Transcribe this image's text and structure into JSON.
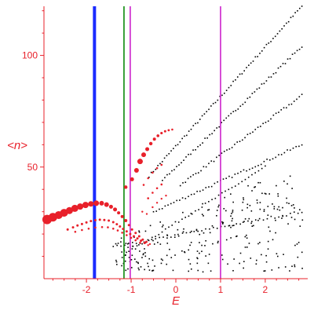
{
  "chart_data": {
    "type": "scatter",
    "xlabel": "E",
    "ylabel": "<n>",
    "xlim": [
      -2.95,
      2.95
    ],
    "ylim": [
      0,
      122
    ],
    "x_ticks": [
      -2,
      -1,
      0,
      1,
      2
    ],
    "x_tick_labels": [
      "-2",
      "-1",
      "0",
      "1",
      "2"
    ],
    "y_ticks": [
      50,
      100
    ],
    "y_tick_labels": [
      "50",
      "100"
    ],
    "grid": false,
    "colors": {
      "axis": "#e8202a",
      "points_black": "#000000",
      "points_red": "#e8202a",
      "line_blue": "#1a2bff",
      "line_green": "#0a8a0a",
      "line_magenta": "#cc22cc"
    },
    "vertical_lines": [
      {
        "x": -1.82,
        "color": "#1a2bff",
        "width": "thick"
      },
      {
        "x": -1.16,
        "color": "#0a8a0a",
        "width": "thin"
      },
      {
        "x": -1.02,
        "color": "#cc22cc",
        "width": "thin"
      },
      {
        "x": 1.0,
        "color": "#cc22cc",
        "width": "thin"
      }
    ],
    "red_series": [
      {
        "x": -2.88,
        "y": 26.5,
        "s": 6
      },
      {
        "x": -2.75,
        "y": 27.5,
        "s": 5.5
      },
      {
        "x": -2.62,
        "y": 28.5,
        "s": 5
      },
      {
        "x": -2.5,
        "y": 29.5,
        "s": 5
      },
      {
        "x": -2.38,
        "y": 30.5,
        "s": 4.5
      },
      {
        "x": -2.26,
        "y": 31.5,
        "s": 4.5
      },
      {
        "x": -2.14,
        "y": 32.3,
        "s": 4
      },
      {
        "x": -2.02,
        "y": 33,
        "s": 4
      },
      {
        "x": -1.9,
        "y": 33.5,
        "s": 3.5
      },
      {
        "x": -1.78,
        "y": 33.8,
        "s": 3.5
      },
      {
        "x": -1.66,
        "y": 33.8,
        "s": 3
      },
      {
        "x": -1.55,
        "y": 33.2,
        "s": 3
      },
      {
        "x": -1.45,
        "y": 32.2,
        "s": 2.5
      },
      {
        "x": -1.36,
        "y": 31,
        "s": 2.5
      },
      {
        "x": -1.28,
        "y": 29.5,
        "s": 2
      },
      {
        "x": -1.2,
        "y": 27.8,
        "s": 2
      },
      {
        "x": -1.12,
        "y": 26,
        "s": 2
      },
      {
        "x": -1.05,
        "y": 24,
        "s": 1.5
      },
      {
        "x": -0.98,
        "y": 22,
        "s": 1.5
      },
      {
        "x": -0.9,
        "y": 20.5,
        "s": 1.5
      },
      {
        "x": -0.82,
        "y": 19,
        "s": 1.5
      },
      {
        "x": -0.74,
        "y": 17.5,
        "s": 1.5
      },
      {
        "x": -0.66,
        "y": 16.5,
        "s": 1.5
      },
      {
        "x": -0.58,
        "y": 15.5,
        "s": 1.2
      },
      {
        "x": -2.42,
        "y": 22,
        "s": 1.5
      },
      {
        "x": -2.3,
        "y": 23,
        "s": 1.5
      },
      {
        "x": -2.2,
        "y": 23.8,
        "s": 1.5
      },
      {
        "x": -2.1,
        "y": 24.5,
        "s": 1.5
      },
      {
        "x": -2.0,
        "y": 25.2,
        "s": 1.5
      },
      {
        "x": -1.9,
        "y": 25.8,
        "s": 1.5
      },
      {
        "x": -1.8,
        "y": 26.2,
        "s": 1.5
      },
      {
        "x": -1.7,
        "y": 26.4,
        "s": 1.5
      },
      {
        "x": -1.6,
        "y": 26.3,
        "s": 1.5
      },
      {
        "x": -1.5,
        "y": 26,
        "s": 1.5
      },
      {
        "x": -1.4,
        "y": 25.3,
        "s": 1.5
      },
      {
        "x": -1.32,
        "y": 24.4,
        "s": 1.5
      },
      {
        "x": -1.25,
        "y": 23.4,
        "s": 1.5
      },
      {
        "x": -1.18,
        "y": 22.3,
        "s": 1.5
      },
      {
        "x": -1.1,
        "y": 21.2,
        "s": 1.5
      },
      {
        "x": -1.02,
        "y": 20,
        "s": 1.5
      },
      {
        "x": -0.94,
        "y": 19,
        "s": 1.5
      },
      {
        "x": -0.86,
        "y": 18,
        "s": 1.5
      },
      {
        "x": -0.78,
        "y": 17,
        "s": 1.5
      },
      {
        "x": -0.7,
        "y": 16,
        "s": 1.5
      },
      {
        "x": -0.62,
        "y": 15,
        "s": 1.2
      },
      {
        "x": -2.25,
        "y": 21,
        "s": 1.3
      },
      {
        "x": -2.1,
        "y": 21.8,
        "s": 1.3
      },
      {
        "x": -1.95,
        "y": 22.4,
        "s": 1.3
      },
      {
        "x": -1.8,
        "y": 22.9,
        "s": 1.3
      },
      {
        "x": -1.65,
        "y": 23.1,
        "s": 1.3
      },
      {
        "x": -1.52,
        "y": 23,
        "s": 1.3
      },
      {
        "x": -1.4,
        "y": 22.4,
        "s": 1.3
      },
      {
        "x": -1.3,
        "y": 21.6,
        "s": 1.3
      },
      {
        "x": -1.2,
        "y": 20.6,
        "s": 1.3
      },
      {
        "x": -1.1,
        "y": 19.5,
        "s": 1.3
      },
      {
        "x": -1.0,
        "y": 18.3,
        "s": 1.3
      },
      {
        "x": -0.9,
        "y": 17.2,
        "s": 1.3
      },
      {
        "x": -0.8,
        "y": 16.1,
        "s": 1.3
      },
      {
        "x": -1.12,
        "y": 41,
        "s": 2.2
      },
      {
        "x": -0.98,
        "y": 44.5,
        "s": 2.5
      },
      {
        "x": -0.88,
        "y": 48.5,
        "s": 3
      },
      {
        "x": -0.8,
        "y": 52.5,
        "s": 3.5
      },
      {
        "x": -0.72,
        "y": 55.5,
        "s": 3
      },
      {
        "x": -0.64,
        "y": 58,
        "s": 2.5
      },
      {
        "x": -0.56,
        "y": 60.5,
        "s": 2.2
      },
      {
        "x": -0.48,
        "y": 62.5,
        "s": 2
      },
      {
        "x": -0.4,
        "y": 64,
        "s": 1.8
      },
      {
        "x": -0.32,
        "y": 65.2,
        "s": 1.6
      },
      {
        "x": -0.24,
        "y": 66,
        "s": 1.5
      },
      {
        "x": -0.16,
        "y": 66.5,
        "s": 1.4
      },
      {
        "x": -0.08,
        "y": 66.8,
        "s": 1.3
      },
      {
        "x": -0.72,
        "y": 42,
        "s": 1.3
      },
      {
        "x": -0.62,
        "y": 45,
        "s": 1.3
      },
      {
        "x": -0.52,
        "y": 47.5,
        "s": 1.3
      },
      {
        "x": -0.42,
        "y": 49.5,
        "s": 1.3
      },
      {
        "x": -0.32,
        "y": 51,
        "s": 1.3
      },
      {
        "x": -0.62,
        "y": 36,
        "s": 1.3
      },
      {
        "x": -0.52,
        "y": 38.5,
        "s": 1.3
      },
      {
        "x": -0.42,
        "y": 40.5,
        "s": 1.3
      },
      {
        "x": -0.32,
        "y": 42.2,
        "s": 1.3
      },
      {
        "x": -0.52,
        "y": 32,
        "s": 1.2
      },
      {
        "x": -0.42,
        "y": 34,
        "s": 1.2
      },
      {
        "x": -0.32,
        "y": 35.8,
        "s": 1.2
      },
      {
        "x": -0.22,
        "y": 37.2,
        "s": 1.2
      },
      {
        "x": -0.75,
        "y": 30,
        "s": 1.2
      },
      {
        "x": -0.65,
        "y": 29,
        "s": 1.2
      }
    ],
    "black_bands": [
      {
        "x0": -0.6,
        "x1": 2.82,
        "y0": 46,
        "y1": 122,
        "n": 70
      },
      {
        "x0": -0.3,
        "x1": 2.82,
        "y0": 44,
        "y1": 104,
        "n": 60
      },
      {
        "x0": 0.1,
        "x1": 2.82,
        "y0": 42,
        "y1": 82,
        "n": 48
      },
      {
        "x0": -0.5,
        "x1": 2.82,
        "y0": 30,
        "y1": 60,
        "n": 52
      },
      {
        "x0": -1.2,
        "x1": 2.0,
        "y0": 10,
        "y1": 50,
        "n": 44
      },
      {
        "x0": -1.4,
        "x1": 2.82,
        "y0": 14,
        "y1": 30,
        "n": 50
      }
    ],
    "black_cloud": {
      "x0": -1.35,
      "x1": 2.85,
      "y0": 3,
      "y1": 46,
      "n": 260,
      "seed": 7
    }
  }
}
